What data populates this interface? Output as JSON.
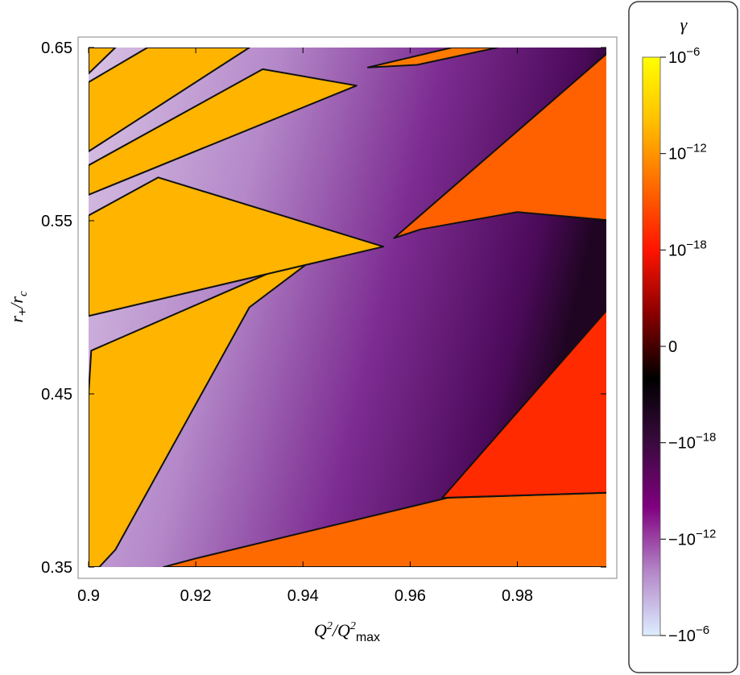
{
  "chart_data": {
    "type": "heatmap",
    "title": "",
    "xlabel": {
      "base": "Q",
      "sup1": "2",
      "sep": "/Q",
      "sup2": "2",
      "sub": "max"
    },
    "ylabel": {
      "r": "r",
      "plus": "+",
      "sep": "/r",
      "sub": "c"
    },
    "xlim": [
      0.9,
      0.9966
    ],
    "ylim": [
      0.35,
      0.65
    ],
    "x_ticks": [
      "0.9",
      "0.92",
      "0.94",
      "0.96",
      "0.98"
    ],
    "y_ticks": [
      "0.35",
      "0.45",
      "0.55",
      "0.65"
    ],
    "grid": false,
    "colorbar": {
      "title": "γ",
      "scale": "signed-log",
      "ticks": [
        {
          "base": "10",
          "exp": "−6"
        },
        {
          "base": "10",
          "exp": "−12"
        },
        {
          "base": "10",
          "exp": "−18"
        },
        {
          "base": "0",
          "exp": ""
        },
        {
          "base": "−10",
          "exp": "−18"
        },
        {
          "base": "−10",
          "exp": "−12"
        },
        {
          "base": "−10",
          "exp": "−6"
        }
      ],
      "colors": [
        "#ffff00",
        "#ffbf00",
        "#ff6a00",
        "#ff1400",
        "#8a0000",
        "#000000",
        "#3a0a3e",
        "#800080",
        "#b486c8",
        "#ddeeff"
      ]
    },
    "regions": [
      {
        "sign": "positive",
        "color": "#ffb400",
        "polygon": [
          [
            0.9,
            0.35
          ],
          [
            0.9,
            0.45
          ],
          [
            0.9005,
            0.475
          ],
          [
            0.945,
            0.535
          ],
          [
            0.93,
            0.5
          ],
          [
            0.905,
            0.36
          ],
          [
            0.902,
            0.35
          ]
        ]
      },
      {
        "sign": "positive",
        "color": "#ffb400",
        "polygon": [
          [
            0.9,
            0.495
          ],
          [
            0.9,
            0.553
          ],
          [
            0.913,
            0.575
          ],
          [
            0.955,
            0.535
          ]
        ]
      },
      {
        "sign": "positive",
        "color": "#ffb400",
        "polygon": [
          [
            0.9,
            0.565
          ],
          [
            0.9,
            0.582
          ],
          [
            0.9325,
            0.6375
          ],
          [
            0.95,
            0.628
          ]
        ]
      },
      {
        "sign": "positive",
        "color": "#ffb400",
        "polygon": [
          [
            0.9,
            0.59
          ],
          [
            0.9,
            0.63
          ],
          [
            0.911,
            0.65
          ],
          [
            0.93,
            0.65
          ]
        ]
      },
      {
        "sign": "positive",
        "color": "#ffb400",
        "polygon": [
          [
            0.9,
            0.635
          ],
          [
            0.9,
            0.65
          ],
          [
            0.905,
            0.65
          ]
        ]
      },
      {
        "sign": "positive",
        "color": "#ff7a00",
        "polygon": [
          [
            0.9521,
            0.6385
          ],
          [
            0.9678,
            0.65
          ],
          [
            0.9763,
            0.65
          ],
          [
            0.9613,
            0.64
          ]
        ]
      },
      {
        "sign": "positive",
        "color": "#ff6000",
        "polygon": [
          [
            0.957,
            0.54
          ],
          [
            0.998,
            0.65
          ],
          [
            0.998,
            0.55
          ],
          [
            0.98,
            0.555
          ],
          [
            0.962,
            0.545
          ]
        ]
      },
      {
        "sign": "positive",
        "color": "#ff6a00",
        "polygon": [
          [
            0.956,
            0.35
          ],
          [
            0.998,
            0.35
          ],
          [
            0.998,
            0.393
          ],
          [
            0.967,
            0.39
          ],
          [
            0.92,
            0.355
          ],
          [
            0.914,
            0.35
          ]
        ]
      },
      {
        "sign": "positive",
        "color": "#ff2a00",
        "polygon": [
          [
            0.966,
            0.39
          ],
          [
            0.998,
            0.393
          ],
          [
            0.998,
            0.503
          ]
        ]
      }
    ]
  }
}
